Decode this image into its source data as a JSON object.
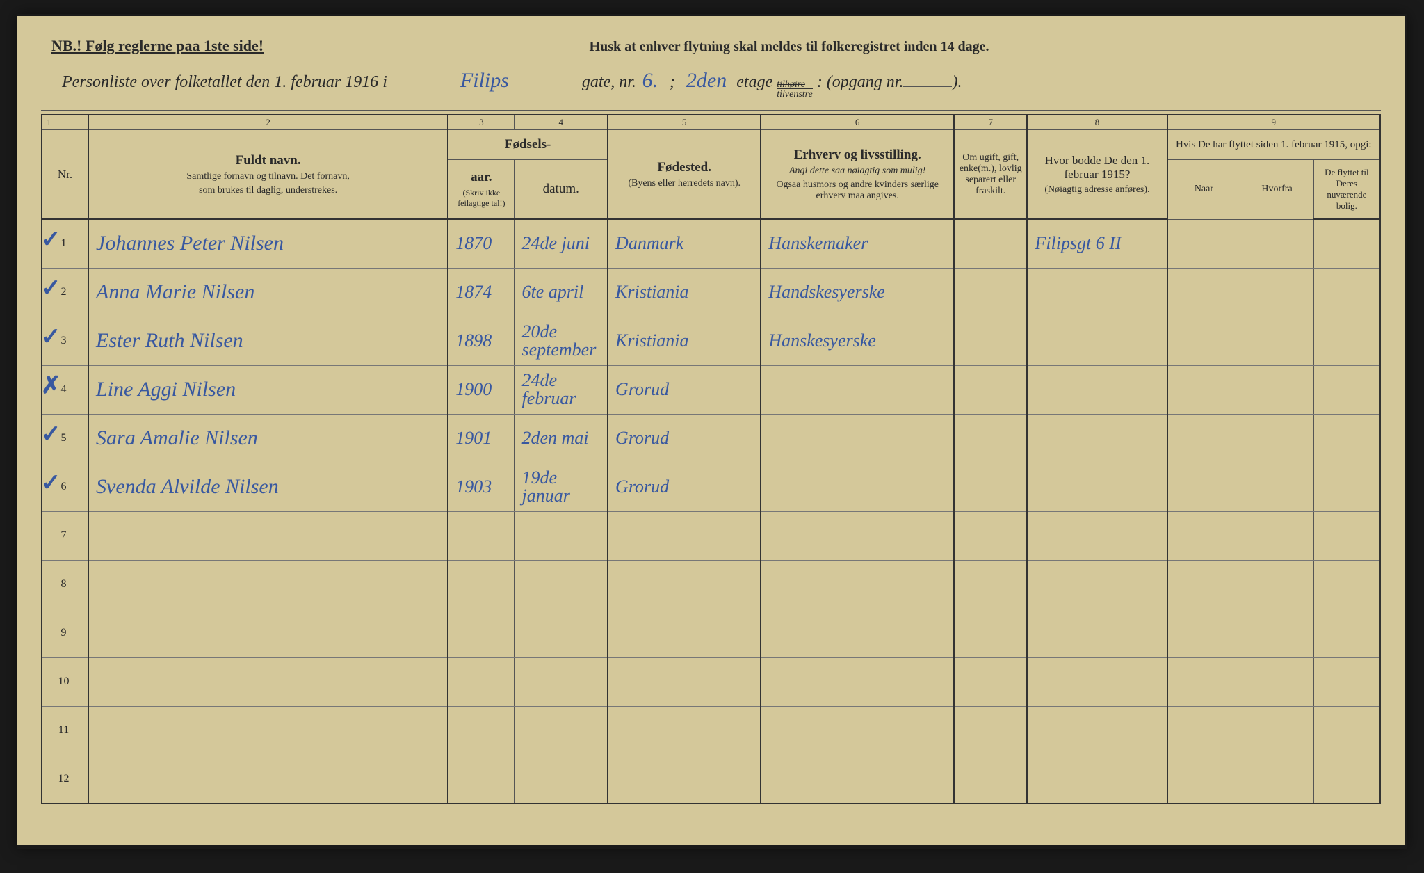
{
  "header": {
    "nb": "NB.! Følg reglerne paa 1ste side!",
    "reminder": "Husk at enhver flytning skal meldes til folkeregistret inden 14 dage."
  },
  "subtitle": {
    "prefix": "Personliste over folketallet den 1. februar 1916 i",
    "street": "Filips",
    "gate_label": "gate, nr.",
    "gate_nr": "6.",
    "semi": ";",
    "etage_nr": "2den",
    "etage_label": "etage",
    "side_top": "tilhøire",
    "side_bot": "tilvenstre",
    "colon": ":",
    "opgang_label": "(opgang nr.",
    "opgang_nr": "",
    "close": ")."
  },
  "col_nums": [
    "1",
    "2",
    "3",
    "4",
    "5",
    "6",
    "7",
    "8",
    "9"
  ],
  "headers": {
    "nr": "Nr.",
    "name_title": "Fuldt navn.",
    "name_sub1": "Samtlige fornavn og tilnavn. Det fornavn,",
    "name_sub2": "som brukes til daglig, understrekes.",
    "birth_title": "Fødsels-",
    "year": "aar.",
    "date": "datum.",
    "year_sub": "(Skriv ikke feilagtige tal!)",
    "birthplace": "Fødested.",
    "birthplace_sub": "(Byens eller herredets navn).",
    "occupation": "Erhverv og livsstilling.",
    "occ_sub1": "Angi dette saa nøiagtig som mulig!",
    "occ_sub2": "Ogsaa husmors og andre kvinders særlige erhverv maa angives.",
    "status": "Om ugift, gift, enke(m.), lovlig separert eller fraskilt.",
    "address": "Hvor bodde De den 1. februar 1915?",
    "address_sub": "(Nøiagtig adresse anføres).",
    "moved_title": "Hvis De har flyttet siden 1. februar 1915, opgi:",
    "when": "Naar",
    "from": "Hvorfra",
    "moved_sub": "De flyttet til Deres nuværende bolig."
  },
  "rows": [
    {
      "nr": "1",
      "mark": "✓",
      "name": "Johannes Peter Nilsen",
      "year": "1870",
      "date": "24de juni",
      "place": "Danmark",
      "occ": "Hanskemaker",
      "status": "",
      "addr": "Filipsgt 6 II",
      "when": "",
      "from": "",
      "moved": ""
    },
    {
      "nr": "2",
      "mark": "✓",
      "name": "Anna Marie Nilsen",
      "year": "1874",
      "date": "6te april",
      "place": "Kristiania",
      "occ": "Handskesyerske",
      "status": "",
      "addr": "",
      "when": "",
      "from": "",
      "moved": ""
    },
    {
      "nr": "3",
      "mark": "✓",
      "name": "Ester Ruth Nilsen",
      "year": "1898",
      "date": "20de september",
      "place": "Kristiania",
      "occ": "Hanskesyerske",
      "status": "",
      "addr": "",
      "when": "",
      "from": "",
      "moved": ""
    },
    {
      "nr": "4",
      "mark": "✗",
      "name": "Line Aggi Nilsen",
      "year": "1900",
      "date": "24de februar",
      "place": "Grorud",
      "occ": "",
      "status": "",
      "addr": "",
      "when": "",
      "from": "",
      "moved": ""
    },
    {
      "nr": "5",
      "mark": "✓",
      "name": "Sara Amalie Nilsen",
      "year": "1901",
      "date": "2den mai",
      "place": "Grorud",
      "occ": "",
      "status": "",
      "addr": "",
      "when": "",
      "from": "",
      "moved": ""
    },
    {
      "nr": "6",
      "mark": "✓",
      "name": "Svenda Alvilde Nilsen",
      "year": "1903",
      "date": "19de januar",
      "place": "Grorud",
      "occ": "",
      "status": "",
      "addr": "",
      "when": "",
      "from": "",
      "moved": ""
    },
    {
      "nr": "7",
      "mark": "",
      "name": "",
      "year": "",
      "date": "",
      "place": "",
      "occ": "",
      "status": "",
      "addr": "",
      "when": "",
      "from": "",
      "moved": ""
    },
    {
      "nr": "8",
      "mark": "",
      "name": "",
      "year": "",
      "date": "",
      "place": "",
      "occ": "",
      "status": "",
      "addr": "",
      "when": "",
      "from": "",
      "moved": ""
    },
    {
      "nr": "9",
      "mark": "",
      "name": "",
      "year": "",
      "date": "",
      "place": "",
      "occ": "",
      "status": "",
      "addr": "",
      "when": "",
      "from": "",
      "moved": ""
    },
    {
      "nr": "10",
      "mark": "",
      "name": "",
      "year": "",
      "date": "",
      "place": "",
      "occ": "",
      "status": "",
      "addr": "",
      "when": "",
      "from": "",
      "moved": ""
    },
    {
      "nr": "11",
      "mark": "",
      "name": "",
      "year": "",
      "date": "",
      "place": "",
      "occ": "",
      "status": "",
      "addr": "",
      "when": "",
      "from": "",
      "moved": ""
    },
    {
      "nr": "12",
      "mark": "",
      "name": "",
      "year": "",
      "date": "",
      "place": "",
      "occ": "",
      "status": "",
      "addr": "",
      "when": "",
      "from": "",
      "moved": ""
    }
  ],
  "colors": {
    "paper": "#d4c89a",
    "ink_print": "#2a2a2a",
    "ink_hand": "#3858a0",
    "border": "#555"
  }
}
